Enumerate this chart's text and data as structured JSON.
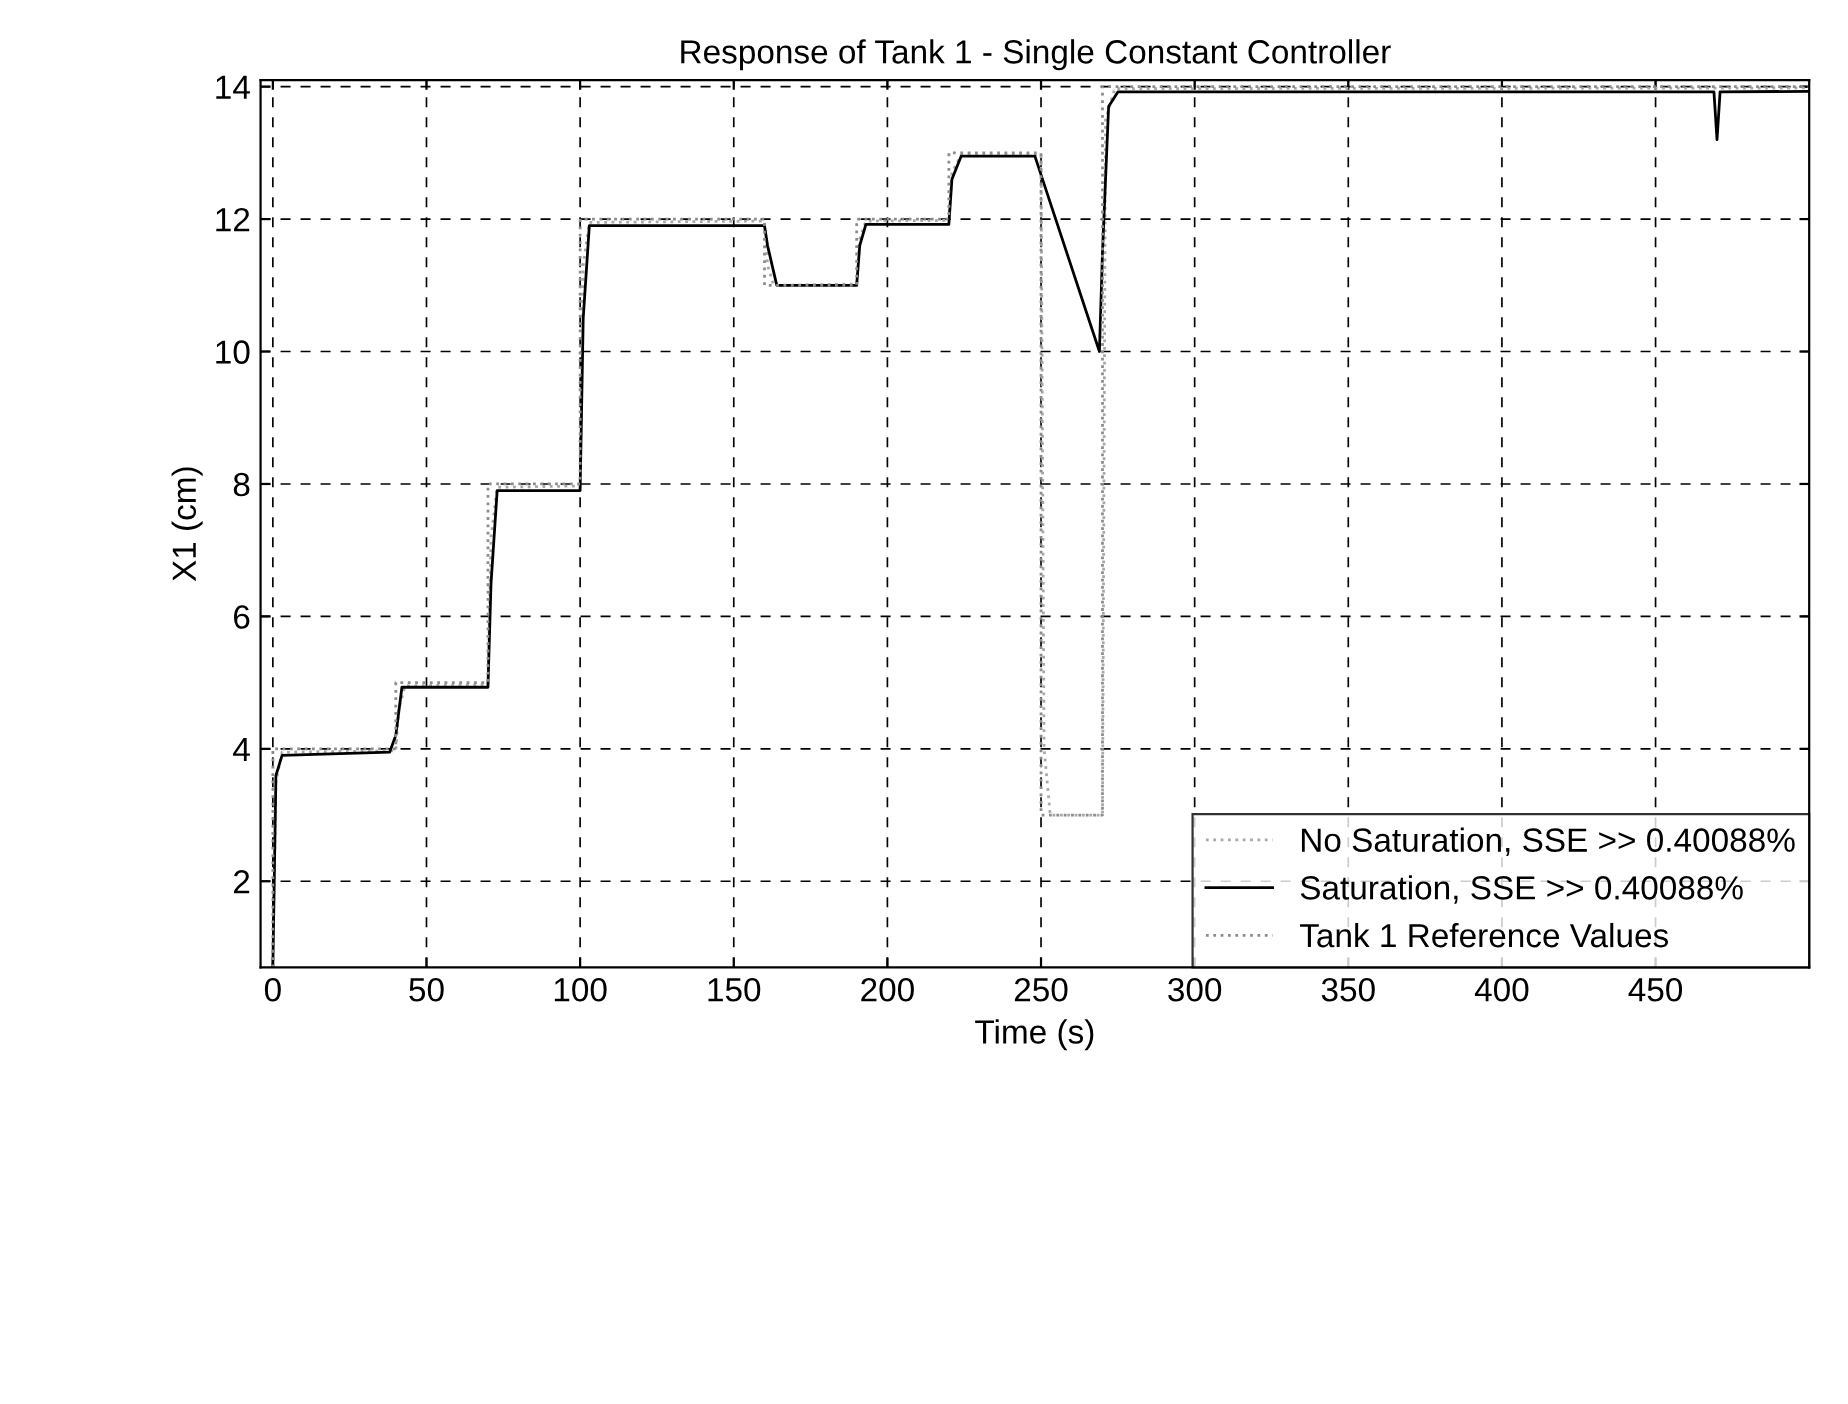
{
  "chart_data": {
    "type": "line",
    "title": "Response of Tank 1 - Single Constant Controller",
    "xlabel": "Time (s)",
    "ylabel": "X1 (cm)",
    "xlim": [
      -4,
      500
    ],
    "xticks": [
      0,
      50,
      100,
      150,
      200,
      250,
      300,
      350,
      400,
      450
    ],
    "ylim": [
      0.7,
      14.1
    ],
    "yticks": [
      2,
      4,
      6,
      8,
      10,
      12,
      14
    ],
    "grid": true,
    "legend": "bottom right",
    "series": [
      {
        "name": "No Saturation, SSE >> 0.40088%",
        "color": "#a8a8a8",
        "line_style": "dotted",
        "x": [
          0,
          1,
          3,
          40,
          41,
          43,
          70,
          71,
          73,
          100,
          101,
          103,
          160,
          161,
          163,
          190,
          191,
          193,
          220,
          221,
          224,
          250,
          251,
          253,
          270,
          271,
          274,
          500
        ],
        "values": [
          0.7,
          3.5,
          3.95,
          3.97,
          4.6,
          4.95,
          4.97,
          7.2,
          7.95,
          7.97,
          11.3,
          11.95,
          11.97,
          11.3,
          11.0,
          11.02,
          11.7,
          11.97,
          11.98,
          12.7,
          12.97,
          12.97,
          4,
          3.0,
          3.0,
          13.5,
          13.97,
          13.98
        ]
      },
      {
        "name": "Saturation, SSE >> 0.40088%",
        "color": "#000000",
        "line_style": "solid",
        "x": [
          0,
          1,
          3,
          38,
          40,
          42,
          70,
          71,
          73,
          100,
          101,
          103,
          160,
          161,
          163,
          164,
          190,
          191,
          193,
          220,
          221,
          224,
          248,
          269,
          270,
          272,
          275,
          469,
          470,
          471,
          500
        ],
        "values": [
          0.7,
          3.6,
          3.9,
          3.95,
          4.2,
          4.93,
          4.93,
          6.5,
          7.9,
          7.9,
          10.5,
          11.9,
          11.9,
          11.6,
          11.2,
          11.0,
          11.0,
          11.6,
          11.92,
          11.92,
          12.6,
          12.95,
          12.95,
          10.0,
          11.5,
          13.7,
          13.92,
          13.92,
          13.2,
          13.92,
          13.93
        ]
      },
      {
        "name": "Tank 1 Reference Values",
        "color": "#8c8c8c",
        "line_style": "dotted",
        "x": [
          0,
          0.01,
          40,
          40.01,
          70,
          70.01,
          100,
          100.01,
          160,
          160.01,
          190,
          190.01,
          220,
          220.01,
          250,
          250.01,
          270,
          270.01,
          500
        ],
        "values": [
          0.7,
          4,
          4,
          5,
          5,
          8,
          8,
          12,
          12,
          11,
          11,
          12,
          12,
          13,
          13,
          3,
          3,
          14,
          14
        ]
      }
    ]
  }
}
